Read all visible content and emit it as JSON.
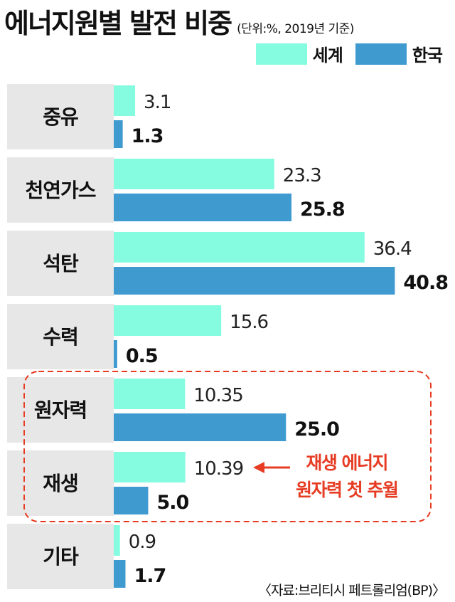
{
  "header": {
    "title": "에너지원별 발전 비중",
    "subtitle": "(단위:%, 2019년 기준)"
  },
  "legend": {
    "world_label": "세계",
    "korea_label": "한국"
  },
  "colors": {
    "world": "#85fbe0",
    "korea": "#3f9ad0",
    "category_bg": "#e7e7e7",
    "highlight": "#e63c23"
  },
  "chart_data": {
    "type": "bar",
    "orientation": "horizontal",
    "categories": [
      "중유",
      "천연가스",
      "석탄",
      "수력",
      "원자력",
      "재생",
      "기타"
    ],
    "series": [
      {
        "name": "세계",
        "values": [
          3.1,
          23.3,
          36.4,
          15.6,
          10.35,
          10.39,
          0.9
        ],
        "labels": [
          "3.1",
          "23.3",
          "36.4",
          "15.6",
          "10.35",
          "10.39",
          "0.9"
        ]
      },
      {
        "name": "한국",
        "values": [
          1.3,
          25.8,
          40.8,
          0.5,
          25.0,
          5.0,
          1.7
        ],
        "labels": [
          "1.3",
          "25.8",
          "40.8",
          "0.5",
          "25.0",
          "5.0",
          "1.7"
        ]
      }
    ],
    "xlim": [
      0,
      48.5
    ],
    "grid": false,
    "legend_position": "top-right",
    "highlighted_categories": [
      "원자력",
      "재생"
    ]
  },
  "annotation": {
    "line1": "재생 에너지",
    "line2": "원자력 첫 추월"
  },
  "source": "〈자료:브리티시 페트롤리엄(BP)〉"
}
